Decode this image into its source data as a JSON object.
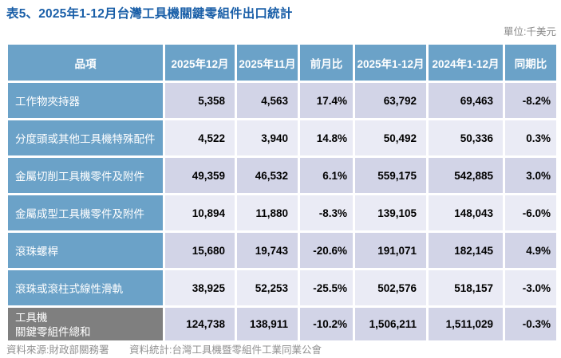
{
  "title": "表5、2025年1-12月台灣工具機關鍵零組件出口統計",
  "unit_label": "單位:千美元",
  "colors": {
    "title_blue": "#1a5fa8",
    "header_blue": "#6ba2c8",
    "row_dark": "#d2d4e7",
    "row_light": "#eaebf5",
    "total_gray": "#7f7f7f"
  },
  "chart_data": {
    "type": "table",
    "title": "表5、2025年1-12月台灣工具機關鍵零組件出口統計",
    "unit": "千美元",
    "columns": [
      "品項",
      "2025年12月",
      "2025年11月",
      "前月比",
      "2025年1-12月",
      "2024年1-12月",
      "同期比"
    ],
    "rows": [
      {
        "item": "工作物夾持器",
        "values": [
          "5,358",
          "4,563",
          "17.4%",
          "63,792",
          "69,463",
          "-8.2%"
        ]
      },
      {
        "item": "分度頭或其他工具機特殊配件",
        "values": [
          "4,522",
          "3,940",
          "14.8%",
          "50,492",
          "50,336",
          "0.3%"
        ]
      },
      {
        "item": "金屬切削工具機零件及附件",
        "values": [
          "49,359",
          "46,532",
          "6.1%",
          "559,175",
          "542,885",
          "3.0%"
        ]
      },
      {
        "item": "金屬成型工具機零件及附件",
        "values": [
          "10,894",
          "11,880",
          "-8.3%",
          "139,105",
          "148,043",
          "-6.0%"
        ]
      },
      {
        "item": "滾珠螺桿",
        "values": [
          "15,680",
          "19,743",
          "-20.6%",
          "191,071",
          "182,145",
          "4.9%"
        ]
      },
      {
        "item": "滾珠或滾柱式線性滑軌",
        "values": [
          "38,925",
          "52,253",
          "-25.5%",
          "502,576",
          "518,157",
          "-3.0%"
        ]
      }
    ],
    "total_row": {
      "item_lines": [
        "工具機",
        "關鍵零組件總和"
      ],
      "values": [
        "124,738",
        "138,911",
        "-10.2%",
        "1,506,211",
        "1,511,029",
        "-0.3%"
      ]
    }
  },
  "footer": {
    "source": "資料來源:財政部關務署",
    "stats": "資料統計:台灣工具機暨零組件工業同業公會"
  }
}
